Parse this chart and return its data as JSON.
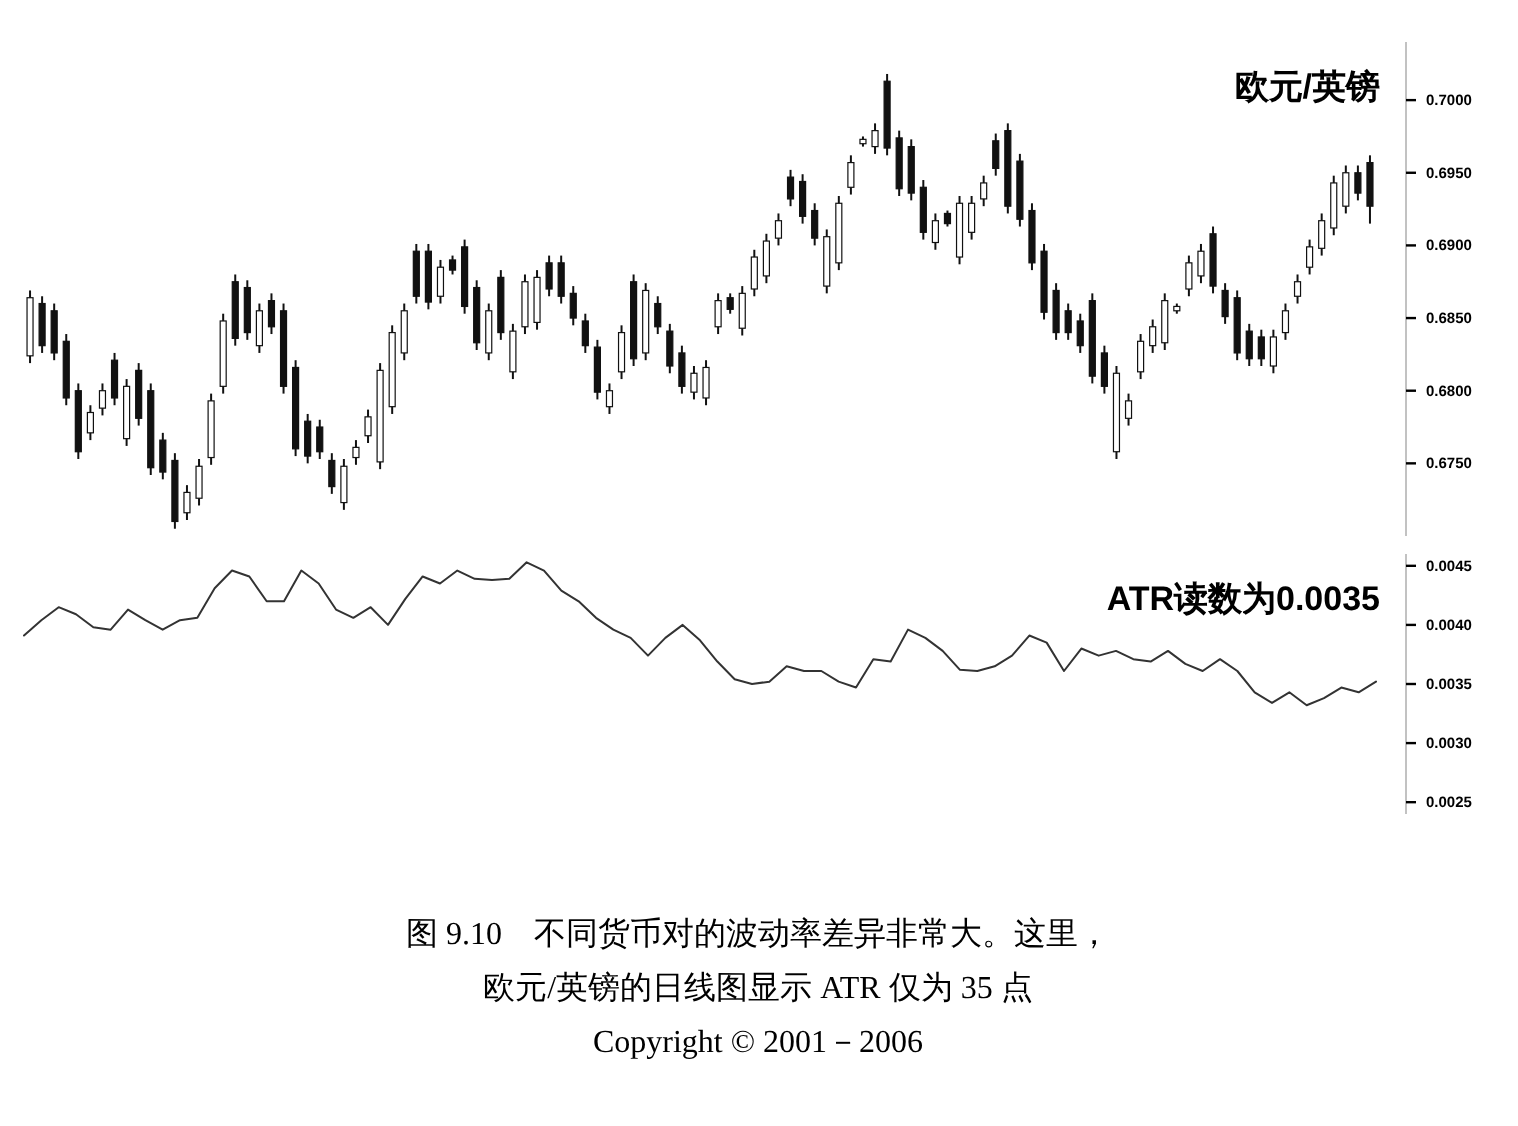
{
  "chart_data": [
    {
      "type": "candlestick",
      "title": "欧元/英镑",
      "color": "#111111",
      "tick_labels": "y",
      "ylim": [
        0.67,
        0.704
      ],
      "yticks": [
        {
          "value": 0.675,
          "label": "0.6750"
        },
        {
          "value": 0.68,
          "label": "0.6800"
        },
        {
          "value": 0.685,
          "label": "0.6850"
        },
        {
          "value": 0.69,
          "label": "0.6900"
        },
        {
          "value": 0.695,
          "label": "0.6950"
        },
        {
          "value": 0.7,
          "label": "0.7000"
        }
      ],
      "categories": [
        null,
        null,
        null,
        null,
        null,
        null,
        null,
        null,
        null,
        null,
        null,
        null,
        null,
        null,
        null,
        null,
        null,
        null,
        null,
        null,
        null,
        null,
        null,
        null,
        null,
        null,
        null,
        null,
        null,
        null,
        null,
        null,
        null,
        null,
        null,
        null,
        null,
        null,
        null,
        null,
        null,
        null,
        null,
        null,
        null,
        null,
        null,
        null,
        null,
        null,
        null,
        null,
        null,
        null,
        null,
        null,
        null,
        null,
        null,
        null,
        null,
        null,
        null,
        null,
        null,
        null,
        null,
        null,
        null,
        null,
        null,
        null,
        null,
        null,
        null,
        null,
        null,
        null,
        null,
        null,
        null,
        null,
        null,
        null,
        null,
        null,
        null,
        null,
        null,
        null,
        null,
        null,
        null,
        null,
        null,
        null,
        null,
        null,
        null,
        null,
        null,
        null,
        null,
        null,
        null,
        null,
        null,
        null,
        null,
        null,
        null,
        null
      ],
      "ohlc": [
        [
          0.6824,
          0.6869,
          0.6819,
          0.6864
        ],
        [
          0.686,
          0.6865,
          0.6826,
          0.6831
        ],
        [
          0.6855,
          0.686,
          0.6821,
          0.6826
        ],
        [
          0.6834,
          0.6839,
          0.679,
          0.6795
        ],
        [
          0.68,
          0.6805,
          0.6753,
          0.6758
        ],
        [
          0.6771,
          0.679,
          0.6766,
          0.6785
        ],
        [
          0.6788,
          0.6805,
          0.6783,
          0.68
        ],
        [
          0.6821,
          0.6826,
          0.679,
          0.6795
        ],
        [
          0.6767,
          0.6808,
          0.6762,
          0.6803
        ],
        [
          0.6814,
          0.6819,
          0.6776,
          0.6781
        ],
        [
          0.68,
          0.6805,
          0.6742,
          0.6747
        ],
        [
          0.6766,
          0.6771,
          0.6739,
          0.6744
        ],
        [
          0.6752,
          0.6757,
          0.6705,
          0.671
        ],
        [
          0.6716,
          0.6735,
          0.6711,
          0.673
        ],
        [
          0.6726,
          0.6753,
          0.6721,
          0.6748
        ],
        [
          0.6754,
          0.6798,
          0.6749,
          0.6793
        ],
        [
          0.6803,
          0.6853,
          0.6798,
          0.6848
        ],
        [
          0.6875,
          0.688,
          0.6831,
          0.6836
        ],
        [
          0.6871,
          0.6876,
          0.6835,
          0.684
        ],
        [
          0.6831,
          0.686,
          0.6826,
          0.6855
        ],
        [
          0.6862,
          0.6867,
          0.6839,
          0.6844
        ],
        [
          0.6855,
          0.686,
          0.6798,
          0.6803
        ],
        [
          0.6816,
          0.6821,
          0.6755,
          0.676
        ],
        [
          0.6779,
          0.6784,
          0.675,
          0.6755
        ],
        [
          0.6775,
          0.678,
          0.6753,
          0.6758
        ],
        [
          0.6752,
          0.6757,
          0.6729,
          0.6734
        ],
        [
          0.6723,
          0.6753,
          0.6718,
          0.6748
        ],
        [
          0.6754,
          0.6766,
          0.6749,
          0.6761
        ],
        [
          0.6769,
          0.6787,
          0.6764,
          0.6782
        ],
        [
          0.6751,
          0.6819,
          0.6746,
          0.6814
        ],
        [
          0.6789,
          0.6845,
          0.6784,
          0.684
        ],
        [
          0.6826,
          0.686,
          0.6821,
          0.6855
        ],
        [
          0.6896,
          0.6901,
          0.686,
          0.6865
        ],
        [
          0.6896,
          0.6901,
          0.6856,
          0.6861
        ],
        [
          0.6865,
          0.689,
          0.686,
          0.6885
        ],
        [
          0.689,
          0.6893,
          0.688,
          0.6883
        ],
        [
          0.6899,
          0.6904,
          0.6853,
          0.6858
        ],
        [
          0.6871,
          0.6876,
          0.6828,
          0.6833
        ],
        [
          0.6826,
          0.686,
          0.6821,
          0.6855
        ],
        [
          0.6878,
          0.6883,
          0.6835,
          0.684
        ],
        [
          0.6813,
          0.6846,
          0.6808,
          0.6841
        ],
        [
          0.6844,
          0.688,
          0.6839,
          0.6875
        ],
        [
          0.6847,
          0.6883,
          0.6842,
          0.6878
        ],
        [
          0.6888,
          0.6893,
          0.6865,
          0.687
        ],
        [
          0.6888,
          0.6893,
          0.686,
          0.6865
        ],
        [
          0.6867,
          0.6872,
          0.6845,
          0.685
        ],
        [
          0.6848,
          0.6853,
          0.6826,
          0.6831
        ],
        [
          0.683,
          0.6835,
          0.6794,
          0.6799
        ],
        [
          0.6789,
          0.6805,
          0.6784,
          0.68
        ],
        [
          0.6813,
          0.6845,
          0.6808,
          0.684
        ],
        [
          0.6875,
          0.688,
          0.6817,
          0.6822
        ],
        [
          0.6826,
          0.6874,
          0.6821,
          0.6869
        ],
        [
          0.686,
          0.6865,
          0.6839,
          0.6844
        ],
        [
          0.6841,
          0.6846,
          0.6812,
          0.6817
        ],
        [
          0.6826,
          0.6831,
          0.6798,
          0.6803
        ],
        [
          0.6799,
          0.6817,
          0.6794,
          0.6812
        ],
        [
          0.6795,
          0.6821,
          0.679,
          0.6816
        ],
        [
          0.6844,
          0.6867,
          0.6839,
          0.6862
        ],
        [
          0.6864,
          0.6867,
          0.6853,
          0.6856
        ],
        [
          0.6843,
          0.6872,
          0.6838,
          0.6867
        ],
        [
          0.687,
          0.6897,
          0.6865,
          0.6892
        ],
        [
          0.6879,
          0.6908,
          0.6874,
          0.6903
        ],
        [
          0.6905,
          0.6922,
          0.69,
          0.6917
        ],
        [
          0.6947,
          0.6952,
          0.6927,
          0.6932
        ],
        [
          0.6944,
          0.6949,
          0.6915,
          0.692
        ],
        [
          0.6924,
          0.6929,
          0.69,
          0.6905
        ],
        [
          0.6872,
          0.6911,
          0.6867,
          0.6906
        ],
        [
          0.6888,
          0.6934,
          0.6883,
          0.6929
        ],
        [
          0.694,
          0.6962,
          0.6935,
          0.6957
        ],
        [
          0.697,
          0.6975,
          0.6968,
          0.6973
        ],
        [
          0.6968,
          0.6984,
          0.6963,
          0.6979
        ],
        [
          0.7013,
          0.7018,
          0.6962,
          0.6967
        ],
        [
          0.6974,
          0.6979,
          0.6934,
          0.6939
        ],
        [
          0.6968,
          0.6973,
          0.6931,
          0.6936
        ],
        [
          0.694,
          0.6945,
          0.6904,
          0.6909
        ],
        [
          0.6902,
          0.6922,
          0.6897,
          0.6917
        ],
        [
          0.6922,
          0.6924,
          0.6913,
          0.6915
        ],
        [
          0.6892,
          0.6934,
          0.6887,
          0.6929
        ],
        [
          0.6909,
          0.6934,
          0.6904,
          0.6929
        ],
        [
          0.6932,
          0.6948,
          0.6927,
          0.6943
        ],
        [
          0.6972,
          0.6977,
          0.6948,
          0.6953
        ],
        [
          0.6979,
          0.6984,
          0.6922,
          0.6927
        ],
        [
          0.6958,
          0.6963,
          0.6913,
          0.6918
        ],
        [
          0.6924,
          0.6929,
          0.6883,
          0.6888
        ],
        [
          0.6896,
          0.6901,
          0.6849,
          0.6854
        ],
        [
          0.6869,
          0.6874,
          0.6835,
          0.684
        ],
        [
          0.6855,
          0.686,
          0.6835,
          0.684
        ],
        [
          0.6848,
          0.6853,
          0.6826,
          0.6831
        ],
        [
          0.6862,
          0.6867,
          0.6805,
          0.681
        ],
        [
          0.6826,
          0.6831,
          0.6798,
          0.6803
        ],
        [
          0.6758,
          0.6817,
          0.6753,
          0.6812
        ],
        [
          0.6781,
          0.6798,
          0.6776,
          0.6793
        ],
        [
          0.6813,
          0.6839,
          0.6808,
          0.6834
        ],
        [
          0.6831,
          0.6849,
          0.6826,
          0.6844
        ],
        [
          0.6833,
          0.6867,
          0.6828,
          0.6862
        ],
        [
          0.6855,
          0.686,
          0.6853,
          0.6858
        ],
        [
          0.687,
          0.6893,
          0.6865,
          0.6888
        ],
        [
          0.6879,
          0.6901,
          0.6874,
          0.6896
        ],
        [
          0.6908,
          0.6913,
          0.6867,
          0.6872
        ],
        [
          0.6869,
          0.6874,
          0.6846,
          0.6851
        ],
        [
          0.6864,
          0.6869,
          0.6821,
          0.6826
        ],
        [
          0.6841,
          0.6846,
          0.6817,
          0.6822
        ],
        [
          0.6837,
          0.6842,
          0.6817,
          0.6822
        ],
        [
          0.6817,
          0.6842,
          0.6812,
          0.6837
        ],
        [
          0.684,
          0.686,
          0.6835,
          0.6855
        ],
        [
          0.6865,
          0.688,
          0.686,
          0.6875
        ],
        [
          0.6885,
          0.6904,
          0.688,
          0.6899
        ],
        [
          0.6898,
          0.6922,
          0.6893,
          0.6917
        ],
        [
          0.6912,
          0.6948,
          0.6907,
          0.6943
        ],
        [
          0.6927,
          0.6955,
          0.6922,
          0.695
        ],
        [
          0.695,
          0.6955,
          0.6931,
          0.6936
        ],
        [
          0.6957,
          0.6962,
          0.6915,
          0.6927
        ]
      ]
    },
    {
      "type": "line",
      "title": "ATR读数为0.0035",
      "color": "#333333",
      "tick_labels": "y",
      "ylim": [
        0.0024,
        0.0046
      ],
      "yticks": [
        {
          "value": 0.0025,
          "label": "0.0025"
        },
        {
          "value": 0.003,
          "label": "0.0030"
        },
        {
          "value": 0.0035,
          "label": "0.0035"
        },
        {
          "value": 0.004,
          "label": "0.0040"
        },
        {
          "value": 0.0045,
          "label": "0.0045"
        }
      ],
      "categories": [
        null,
        null,
        null,
        null,
        null,
        null,
        null,
        null,
        null,
        null,
        null,
        null,
        null,
        null,
        null,
        null,
        null,
        null,
        null,
        null,
        null,
        null,
        null,
        null,
        null,
        null,
        null,
        null,
        null,
        null,
        null,
        null,
        null,
        null,
        null,
        null,
        null,
        null,
        null,
        null,
        null,
        null,
        null,
        null,
        null,
        null,
        null,
        null,
        null,
        null,
        null,
        null,
        null,
        null,
        null,
        null,
        null,
        null,
        null,
        null,
        null,
        null,
        null,
        null,
        null,
        null,
        null,
        null,
        null,
        null,
        null,
        null,
        null,
        null,
        null,
        null,
        null,
        null,
        null
      ],
      "values": [
        0.00391,
        0.00404,
        0.00415,
        0.00409,
        0.00398,
        0.00396,
        0.00413,
        0.00404,
        0.00396,
        0.00404,
        0.00406,
        0.00431,
        0.00446,
        0.00441,
        0.0042,
        0.0042,
        0.00446,
        0.00435,
        0.00413,
        0.00406,
        0.00415,
        0.004,
        0.00422,
        0.00441,
        0.00435,
        0.00446,
        0.00439,
        0.00438,
        0.00439,
        0.00453,
        0.00446,
        0.00429,
        0.0042,
        0.00406,
        0.00396,
        0.00389,
        0.00374,
        0.00389,
        0.004,
        0.00387,
        0.00369,
        0.00354,
        0.0035,
        0.00352,
        0.00365,
        0.00361,
        0.00361,
        0.00352,
        0.00347,
        0.00371,
        0.00369,
        0.00396,
        0.00389,
        0.00378,
        0.00362,
        0.00361,
        0.00365,
        0.00374,
        0.00391,
        0.00385,
        0.00361,
        0.0038,
        0.00374,
        0.00378,
        0.00371,
        0.00369,
        0.00378,
        0.00367,
        0.00361,
        0.00371,
        0.00361,
        0.00343,
        0.00334,
        0.00343,
        0.00332,
        0.00338,
        0.00347,
        0.00343,
        0.00352
      ],
      "annotations": [
        "图 9.10　不同货币对的波动率差异非常大。这里，",
        "欧元/英镑的日线图显示 ATR 仅为 35 点",
        "Copyright © 2001－2006"
      ]
    }
  ]
}
